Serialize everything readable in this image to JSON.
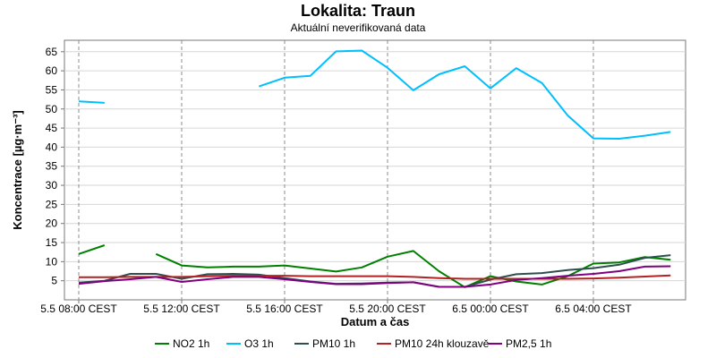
{
  "chart_data": {
    "type": "line",
    "title": "Lokalita: Traun",
    "subtitle": "Aktuální neverifikovaná data",
    "xlabel": "Datum a čas",
    "ylabel": "Koncentrace [µg·m⁻³]",
    "ylim": [
      0,
      68
    ],
    "yticks": [
      5,
      10,
      15,
      20,
      25,
      30,
      35,
      40,
      45,
      50,
      55,
      60,
      65
    ],
    "xlim": [
      0,
      24.8
    ],
    "xtick_positions": [
      0,
      4,
      8,
      12,
      16,
      20
    ],
    "xtick_labels": [
      "5.5 08:00 CEST",
      "5.5 12:00 CEST",
      "5.5 16:00 CEST",
      "5.5 20:00 CEST",
      "6.5 00:00 CEST",
      "6.5 04:00 CEST"
    ],
    "grid": true,
    "legend_position": "bottom",
    "series": [
      {
        "name": "NO2 1h",
        "color": "#008000",
        "values": [
          [
            0,
            12
          ],
          [
            1,
            14.3
          ],
          [
            3,
            12
          ],
          [
            4,
            9
          ],
          [
            5,
            8.5
          ],
          [
            6,
            8.7
          ],
          [
            7,
            8.7
          ],
          [
            8,
            9
          ],
          [
            9,
            8.2
          ],
          [
            10,
            7.4
          ],
          [
            11,
            8.5
          ],
          [
            12,
            11.3
          ],
          [
            13,
            12.8
          ],
          [
            14,
            7.5
          ],
          [
            15,
            3.3
          ],
          [
            16,
            6.2
          ],
          [
            17,
            4.8
          ],
          [
            18,
            4
          ],
          [
            19,
            6.2
          ],
          [
            20,
            9.5
          ],
          [
            21,
            9.8
          ],
          [
            22,
            11.2
          ],
          [
            23,
            10.5
          ]
        ]
      },
      {
        "name": "O3 1h",
        "color": "#00BFFF",
        "values": [
          [
            0,
            52
          ],
          [
            1,
            51.6
          ],
          [
            7,
            55.9
          ],
          [
            8,
            58.2
          ],
          [
            9,
            58.7
          ],
          [
            10,
            65.1
          ],
          [
            11,
            65.3
          ],
          [
            12,
            60.8
          ],
          [
            13,
            54.9
          ],
          [
            14,
            59.1
          ],
          [
            15,
            61.2
          ],
          [
            16,
            55.4
          ],
          [
            17,
            60.7
          ],
          [
            18,
            56.8
          ],
          [
            19,
            48.3
          ],
          [
            20,
            42.3
          ],
          [
            21,
            42.2
          ],
          [
            22,
            43
          ],
          [
            23,
            44
          ]
        ]
      },
      {
        "name": "PM10 1h",
        "color": "#2F4F4F",
        "values": [
          [
            0,
            4.5
          ],
          [
            1,
            5
          ],
          [
            2,
            6.8
          ],
          [
            3,
            6.8
          ],
          [
            4,
            5.5
          ],
          [
            5,
            6.7
          ],
          [
            6,
            6.8
          ],
          [
            7,
            6.6
          ],
          [
            8,
            5.7
          ],
          [
            9,
            4.8
          ],
          [
            10,
            4.2
          ],
          [
            11,
            4.3
          ],
          [
            12,
            4.5
          ],
          [
            13,
            4.6
          ],
          [
            14,
            3.4
          ],
          [
            15,
            3.4
          ],
          [
            16,
            5.3
          ],
          [
            17,
            6.7
          ],
          [
            18,
            7
          ],
          [
            19,
            7.8
          ],
          [
            20,
            8.3
          ],
          [
            21,
            9.2
          ],
          [
            22,
            11
          ],
          [
            23,
            11.7
          ]
        ]
      },
      {
        "name": "PM10 24h klouzavě",
        "color": "#B22222",
        "values": [
          [
            0,
            5.9
          ],
          [
            1,
            5.9
          ],
          [
            2,
            6
          ],
          [
            3,
            6
          ],
          [
            4,
            6
          ],
          [
            5,
            6.2
          ],
          [
            6,
            6.3
          ],
          [
            7,
            6.3
          ],
          [
            8,
            6.3
          ],
          [
            9,
            6.2
          ],
          [
            10,
            6.2
          ],
          [
            11,
            6.2
          ],
          [
            12,
            6.2
          ],
          [
            13,
            6
          ],
          [
            14,
            5.7
          ],
          [
            15,
            5.5
          ],
          [
            16,
            5.5
          ],
          [
            17,
            5.5
          ],
          [
            18,
            5.5
          ],
          [
            19,
            5.5
          ],
          [
            20,
            5.6
          ],
          [
            21,
            5.8
          ],
          [
            22,
            6.1
          ],
          [
            23,
            6.4
          ]
        ]
      },
      {
        "name": "PM2,5 1h",
        "color": "#800080",
        "values": [
          [
            0,
            4.2
          ],
          [
            1,
            4.9
          ],
          [
            2,
            5.4
          ],
          [
            3,
            6
          ],
          [
            4,
            4.7
          ],
          [
            5,
            5.4
          ],
          [
            6,
            6
          ],
          [
            7,
            6
          ],
          [
            8,
            5.4
          ],
          [
            9,
            4.7
          ],
          [
            10,
            4.1
          ],
          [
            11,
            4.1
          ],
          [
            12,
            4.4
          ],
          [
            13,
            4.6
          ],
          [
            14,
            3.4
          ],
          [
            15,
            3.4
          ],
          [
            16,
            4
          ],
          [
            17,
            5.2
          ],
          [
            18,
            5.7
          ],
          [
            19,
            6.3
          ],
          [
            20,
            6.8
          ],
          [
            21,
            7.5
          ],
          [
            22,
            8.7
          ],
          [
            23,
            8.8
          ]
        ]
      }
    ]
  }
}
